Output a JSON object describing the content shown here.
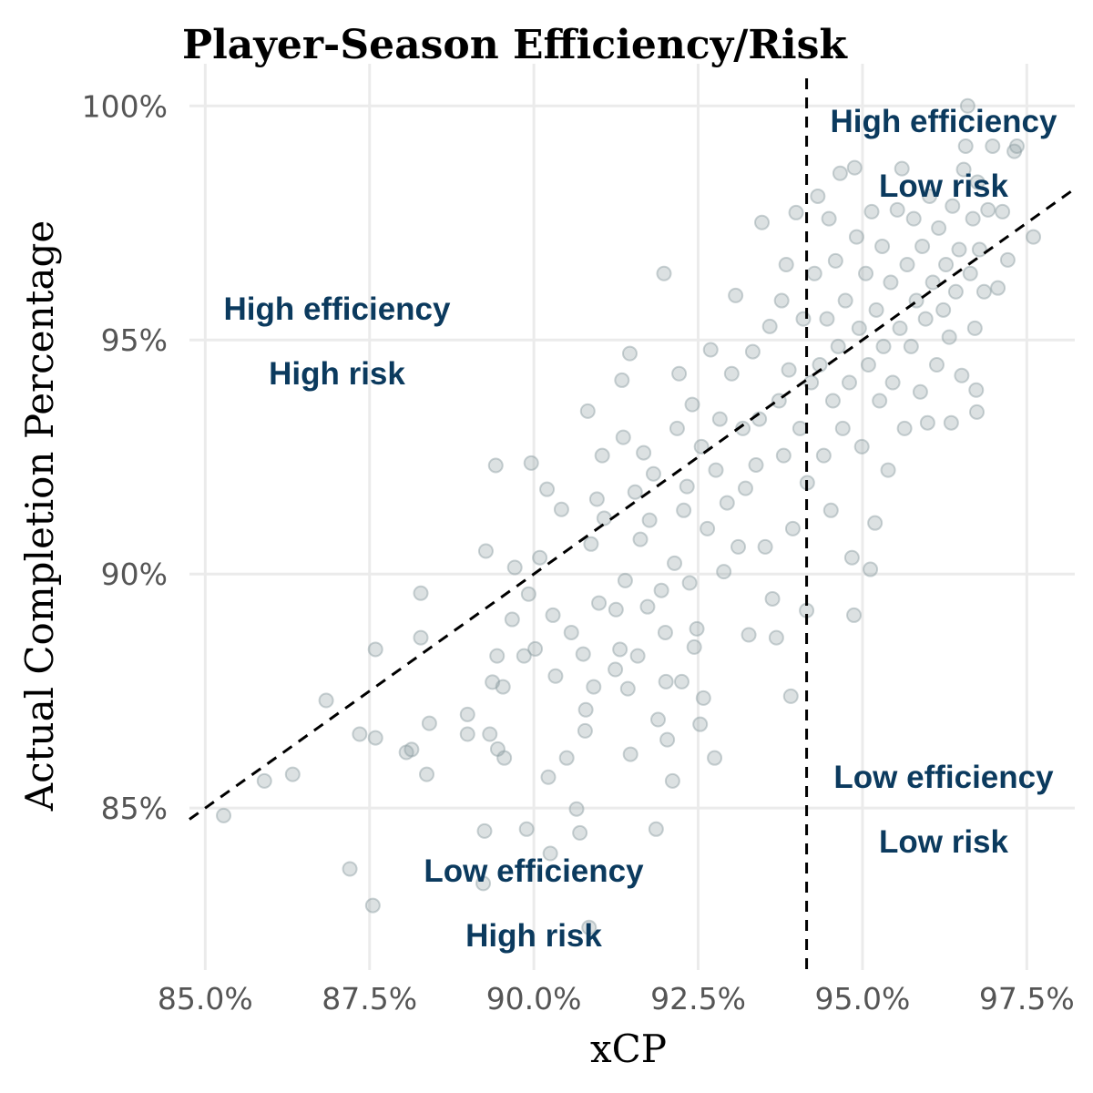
{
  "chart_data": {
    "type": "scatter",
    "title": "Player-Season Efficiency/Risk",
    "x_label": "xCP",
    "y_label": "Actual Completion Percentage",
    "color": "#8a9ba0",
    "grid": true,
    "xlim": [
      84.76,
      98.23
    ],
    "ylim": [
      81.54,
      100.9
    ],
    "xticks": [
      {
        "value": 85,
        "label": "85.0%"
      },
      {
        "value": 87.5,
        "label": "87.5%"
      },
      {
        "value": 90,
        "label": "90.0%"
      },
      {
        "value": 92.5,
        "label": "92.5%"
      },
      {
        "value": 95,
        "label": "95.0%"
      },
      {
        "value": 97.5,
        "label": "97.5%"
      }
    ],
    "yticks": [
      {
        "value": 85,
        "label": "85%"
      },
      {
        "value": 90,
        "label": "90%"
      },
      {
        "value": 95,
        "label": "95%"
      },
      {
        "value": 100,
        "label": "100%"
      }
    ],
    "diagonal": {
      "x": [
        84.76,
        98.23
      ],
      "y": [
        84.76,
        98.23
      ]
    },
    "vline": 94.15,
    "annotations": [
      [
        "High efficiency",
        "Low risk"
      ],
      [
        "High efficiency",
        "High risk"
      ],
      [
        "Low efficiency",
        "Low risk"
      ],
      [
        "Low efficiency",
        "High risk"
      ]
    ],
    "x": [
      85.28,
      85.9,
      86.33,
      86.84,
      87.2,
      87.35,
      87.55,
      87.59,
      87.59,
      88.06,
      88.14,
      88.28,
      88.28,
      88.37,
      88.41,
      88.99,
      88.99,
      89.23,
      89.27,
      89.25,
      89.33,
      89.37,
      89.44,
      89.45,
      89.42,
      89.55,
      89.53,
      89.67,
      89.71,
      89.85,
      89.89,
      89.92,
      89.96,
      90.02,
      90.09,
      90.2,
      90.22,
      90.25,
      90.29,
      90.33,
      90.42,
      90.5,
      90.57,
      90.65,
      90.7,
      90.75,
      90.78,
      90.79,
      90.82,
      90.84,
      90.87,
      90.91,
      90.96,
      90.99,
      91.04,
      91.07,
      91.24,
      91.25,
      91.31,
      91.34,
      91.36,
      91.39,
      91.43,
      91.46,
      91.47,
      91.54,
      91.58,
      91.62,
      91.67,
      91.73,
      91.76,
      91.82,
      91.86,
      91.89,
      91.94,
      91.98,
      92.0,
      92.01,
      92.03,
      92.11,
      92.14,
      92.18,
      92.21,
      92.25,
      92.28,
      92.33,
      92.37,
      92.41,
      92.44,
      92.48,
      92.53,
      92.55,
      92.58,
      92.64,
      92.69,
      92.75,
      92.77,
      92.83,
      92.89,
      92.94,
      93.01,
      93.07,
      93.11,
      93.18,
      93.22,
      93.27,
      93.33,
      93.38,
      93.43,
      93.47,
      93.52,
      93.59,
      93.63,
      93.69,
      93.73,
      93.77,
      93.8,
      93.84,
      93.88,
      93.91,
      93.94,
      93.99,
      94.05,
      94.1,
      94.15,
      94.16,
      94.22,
      94.27,
      94.32,
      94.35,
      94.41,
      94.46,
      94.49,
      94.52,
      94.55,
      94.59,
      94.63,
      94.66,
      94.7,
      94.74,
      94.8,
      94.84,
      94.87,
      94.88,
      94.91,
      94.95,
      94.99,
      95.05,
      95.09,
      95.12,
      95.14,
      95.19,
      95.21,
      95.26,
      95.3,
      95.32,
      95.39,
      95.43,
      95.46,
      95.53,
      95.57,
      95.6,
      95.64,
      95.68,
      95.74,
      95.78,
      95.82,
      95.88,
      95.91,
      95.96,
      95.99,
      96.02,
      96.07,
      96.13,
      96.16,
      96.23,
      96.27,
      96.32,
      96.35,
      96.37,
      96.42,
      96.47,
      96.51,
      96.54,
      96.57,
      96.6,
      96.64,
      96.68,
      96.71,
      96.75,
      96.78,
      96.85,
      96.91,
      96.98,
      97.06,
      97.21,
      97.31,
      97.13,
      97.6,
      97.35,
      96.74,
      96.73
    ],
    "values": [
      84.84,
      85.58,
      85.72,
      87.3,
      83.7,
      86.58,
      82.92,
      88.39,
      86.5,
      86.19,
      86.25,
      88.64,
      89.59,
      85.72,
      86.81,
      87.0,
      86.58,
      83.39,
      90.49,
      84.51,
      86.58,
      87.69,
      88.25,
      86.26,
      92.32,
      86.07,
      87.59,
      89.03,
      90.14,
      88.25,
      84.55,
      89.57,
      92.37,
      88.4,
      90.35,
      91.81,
      85.66,
      84.03,
      89.12,
      87.82,
      91.38,
      86.07,
      88.75,
      84.98,
      84.47,
      88.29,
      86.65,
      87.1,
      93.48,
      82.45,
      90.64,
      87.59,
      91.6,
      89.38,
      92.53,
      91.19,
      87.96,
      89.24,
      88.39,
      94.14,
      92.92,
      89.86,
      87.55,
      94.71,
      86.15,
      91.75,
      88.25,
      90.74,
      92.59,
      89.3,
      91.15,
      92.14,
      84.55,
      86.89,
      89.65,
      96.42,
      88.75,
      87.7,
      86.46,
      85.58,
      90.23,
      93.11,
      94.28,
      87.7,
      91.36,
      91.87,
      89.81,
      93.62,
      88.44,
      88.83,
      86.79,
      92.72,
      87.35,
      90.97,
      94.79,
      86.07,
      92.22,
      93.31,
      90.05,
      91.52,
      94.28,
      95.95,
      90.58,
      93.11,
      91.83,
      88.7,
      94.75,
      92.33,
      93.31,
      97.51,
      90.58,
      95.29,
      89.47,
      88.64,
      93.7,
      95.84,
      92.53,
      96.61,
      94.36,
      87.39,
      90.97,
      97.72,
      93.11,
      95.45,
      89.22,
      91.95,
      94.09,
      96.42,
      98.07,
      94.47,
      92.53,
      95.45,
      97.59,
      91.36,
      93.7,
      96.69,
      94.86,
      98.56,
      93.11,
      95.84,
      94.09,
      90.35,
      89.12,
      98.68,
      97.2,
      95.25,
      92.72,
      96.42,
      94.47,
      90.1,
      97.74,
      91.09,
      95.64,
      93.7,
      97.0,
      94.86,
      92.22,
      96.23,
      94.09,
      97.78,
      95.25,
      98.66,
      93.11,
      96.61,
      94.86,
      97.59,
      95.84,
      93.89,
      97.0,
      95.45,
      93.23,
      98.07,
      96.23,
      94.47,
      97.39,
      95.64,
      96.61,
      95.06,
      93.23,
      97.86,
      96.03,
      96.93,
      94.24,
      98.64,
      99.14,
      100.0,
      96.42,
      97.59,
      95.25,
      98.37,
      96.93,
      96.03,
      97.78,
      99.14,
      96.11,
      96.71,
      99.03,
      97.74,
      97.2,
      99.14,
      93.46,
      93.93
    ]
  }
}
